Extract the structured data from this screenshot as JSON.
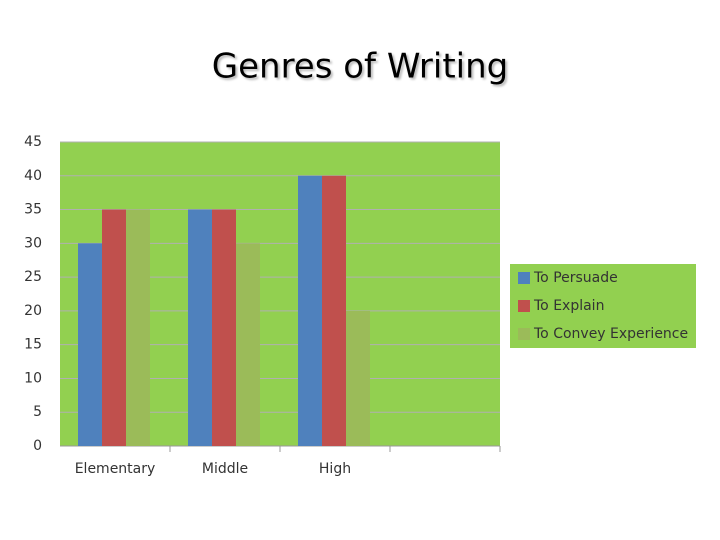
{
  "chart_data": {
    "type": "bar",
    "title": "Genres of Writing",
    "categories": [
      "Elementary",
      "Middle",
      "High",
      null
    ],
    "series": [
      {
        "name": "To Persuade",
        "color": "#4f81bd",
        "values": [
          30,
          35,
          40,
          null
        ]
      },
      {
        "name": "To Explain",
        "color": "#c0504d",
        "values": [
          35,
          35,
          40,
          null
        ]
      },
      {
        "name": "To Convey Experience",
        "color": "#9bbb59",
        "values": [
          35,
          30,
          20,
          null
        ]
      }
    ],
    "ylim": [
      0,
      45
    ],
    "yticks": [
      0,
      5,
      10,
      15,
      20,
      25,
      30,
      35,
      40,
      45
    ],
    "grid": true,
    "plot_background": "#92d050",
    "legend": "right"
  }
}
